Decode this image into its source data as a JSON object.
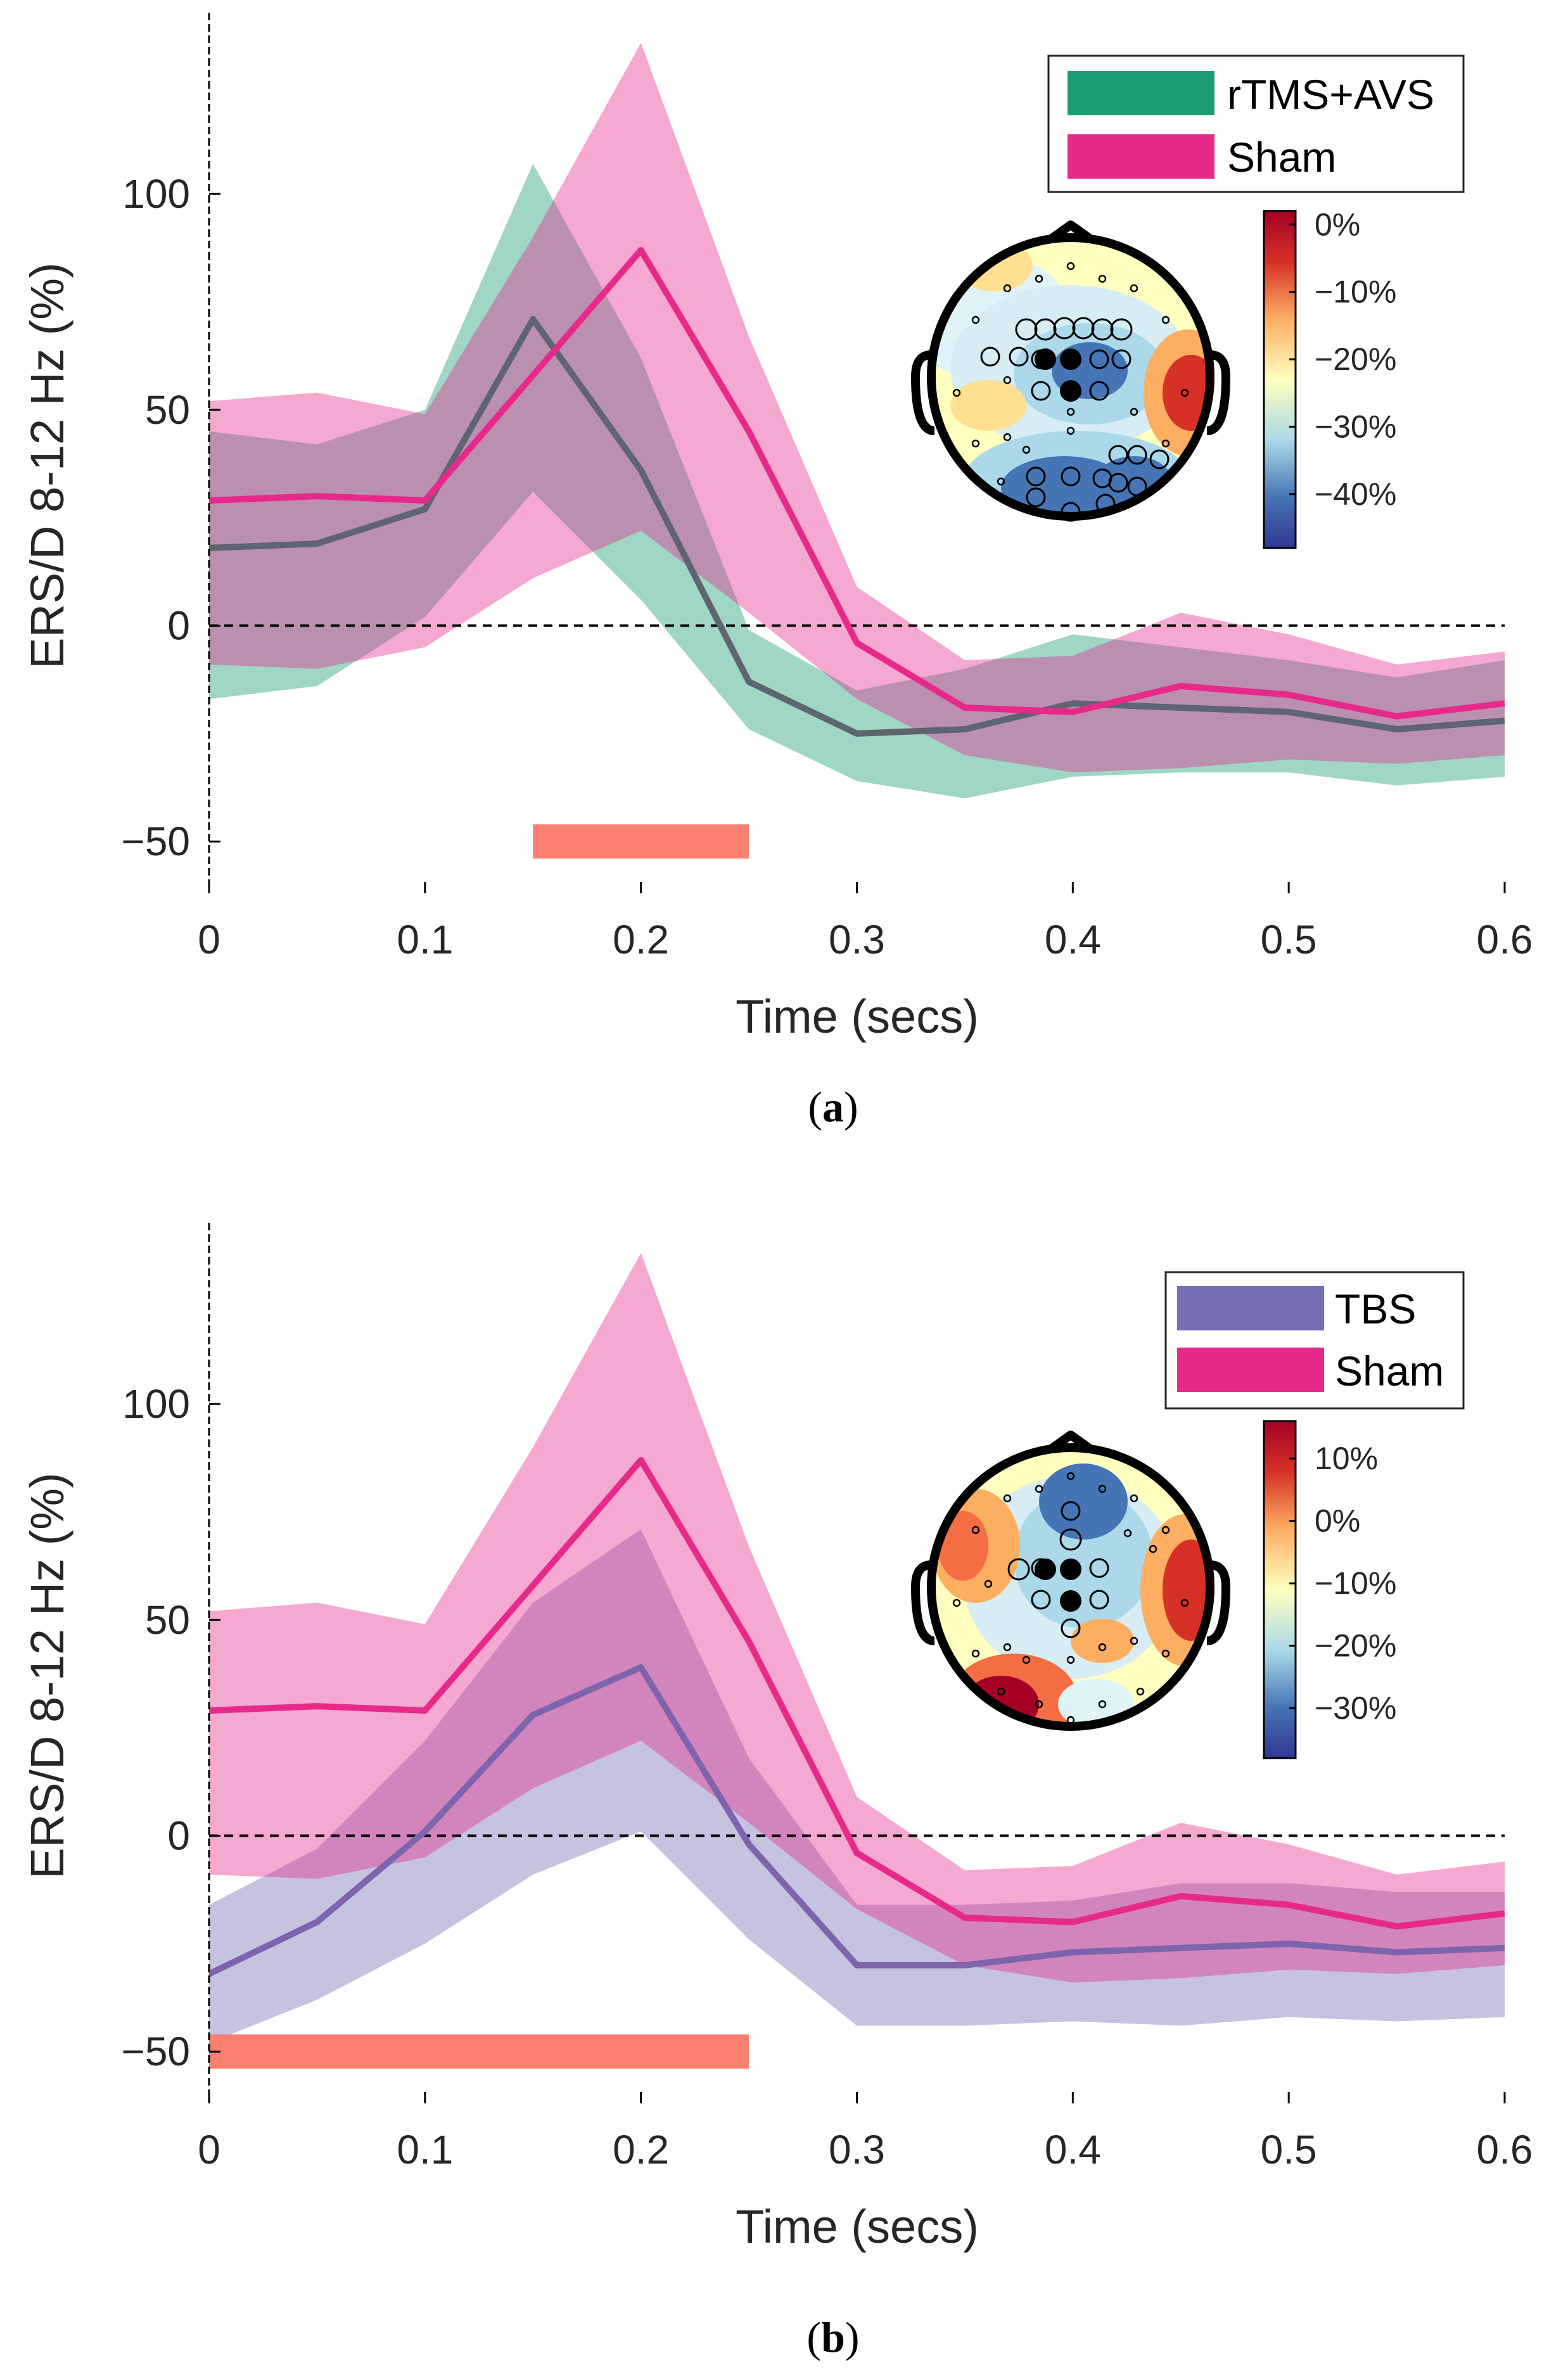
{
  "chart_data": [
    {
      "type": "line",
      "panel_label": "a",
      "xlabel": "Time (secs)",
      "ylabel": "ERS/D 8-12 Hz (%)",
      "xlim": [
        0,
        0.6
      ],
      "ylim": [
        -62,
        142
      ],
      "xticks": [
        0,
        0.1,
        0.2,
        0.3,
        0.4,
        0.5,
        0.6
      ],
      "xtick_labels": [
        "0",
        "0.1",
        "0.2",
        "0.3",
        "0.4",
        "0.5",
        "0.6"
      ],
      "yticks": [
        -50,
        0,
        50,
        100
      ],
      "ytick_labels": [
        "−50",
        "0",
        "50",
        "100"
      ],
      "x": [
        0,
        0.05,
        0.1,
        0.15,
        0.2,
        0.25,
        0.3,
        0.35,
        0.4,
        0.45,
        0.5,
        0.55,
        0.6
      ],
      "series": [
        {
          "name": "rTMS+AVS",
          "color": "#1b9e77",
          "values": [
            18,
            19,
            27,
            71,
            36,
            -13,
            -25,
            -24,
            -18,
            -19,
            -20,
            -24,
            -22
          ],
          "upper": [
            45,
            42,
            50,
            107,
            62,
            -1,
            -15,
            -10,
            -2,
            -5,
            -8,
            -12,
            -8
          ],
          "lower": [
            -17,
            -14,
            2,
            31,
            6,
            -24,
            -36,
            -40,
            -35,
            -34,
            -34,
            -37,
            -35
          ]
        },
        {
          "name": "Sham",
          "color": "#e7298a",
          "values": [
            29,
            30,
            29,
            58,
            87,
            45,
            -4,
            -19,
            -20,
            -14,
            -16,
            -21,
            -18
          ],
          "upper": [
            52,
            54,
            49,
            90,
            135,
            67,
            9,
            -8,
            -7,
            3,
            -2,
            -9,
            -6
          ],
          "lower": [
            -9,
            -10,
            -5,
            11,
            22,
            3,
            -17,
            -30,
            -34,
            -33,
            -31,
            -32,
            -30
          ]
        }
      ],
      "significance_bar": {
        "x_start": 0.15,
        "x_end": 0.25,
        "y": -50,
        "color": "#fb8072"
      },
      "zero_line": true,
      "legend": {
        "location": "top-right",
        "entries": [
          "rTMS+AVS",
          "Sham"
        ]
      },
      "inset": {
        "type": "topoplot",
        "colorbar_ticks": [
          "0%",
          "−10%",
          "−20%",
          "−30%",
          "−40%"
        ],
        "colorbar_range": [
          -48,
          2
        ]
      }
    },
    {
      "type": "line",
      "panel_label": "b",
      "xlabel": "Time (secs)",
      "ylabel": "ERS/D 8-12 Hz (%)",
      "xlim": [
        0,
        0.6
      ],
      "ylim": [
        -62,
        142
      ],
      "xticks": [
        0,
        0.1,
        0.2,
        0.3,
        0.4,
        0.5,
        0.6
      ],
      "xtick_labels": [
        "0",
        "0.1",
        "0.2",
        "0.3",
        "0.4",
        "0.5",
        "0.6"
      ],
      "yticks": [
        -50,
        0,
        50,
        100
      ],
      "ytick_labels": [
        "−50",
        "0",
        "50",
        "100"
      ],
      "x": [
        0,
        0.05,
        0.1,
        0.15,
        0.2,
        0.25,
        0.3,
        0.35,
        0.4,
        0.45,
        0.5,
        0.55,
        0.6
      ],
      "series": [
        {
          "name": "TBS",
          "color": "#7570b3",
          "values": [
            -32,
            -20,
            1,
            28,
            39,
            -2,
            -30,
            -30,
            -27,
            -26,
            -25,
            -27,
            -26
          ],
          "upper": [
            -16,
            -3,
            22,
            54,
            71,
            18,
            -16,
            -16,
            -15,
            -11,
            -11,
            -13,
            -13
          ],
          "lower": [
            -48,
            -38,
            -25,
            -9,
            1,
            -24,
            -44,
            -44,
            -43,
            -44,
            -42,
            -43,
            -42
          ]
        },
        {
          "name": "Sham",
          "color": "#e7298a",
          "values": [
            29,
            30,
            29,
            58,
            87,
            45,
            -4,
            -19,
            -20,
            -14,
            -16,
            -21,
            -18
          ],
          "upper": [
            52,
            54,
            49,
            90,
            135,
            67,
            9,
            -8,
            -7,
            3,
            -2,
            -9,
            -6
          ],
          "lower": [
            -9,
            -10,
            -5,
            11,
            22,
            3,
            -17,
            -30,
            -34,
            -33,
            -31,
            -32,
            -30
          ]
        }
      ],
      "significance_bar": {
        "x_start": 0,
        "x_end": 0.25,
        "y": -50,
        "color": "#fb8072"
      },
      "zero_line": true,
      "legend": {
        "location": "top-right",
        "entries": [
          "TBS",
          "Sham"
        ]
      },
      "inset": {
        "type": "topoplot",
        "colorbar_ticks": [
          "10%",
          "0%",
          "−10%",
          "−20%",
          "−30%"
        ],
        "colorbar_range": [
          -38,
          16
        ]
      }
    }
  ]
}
